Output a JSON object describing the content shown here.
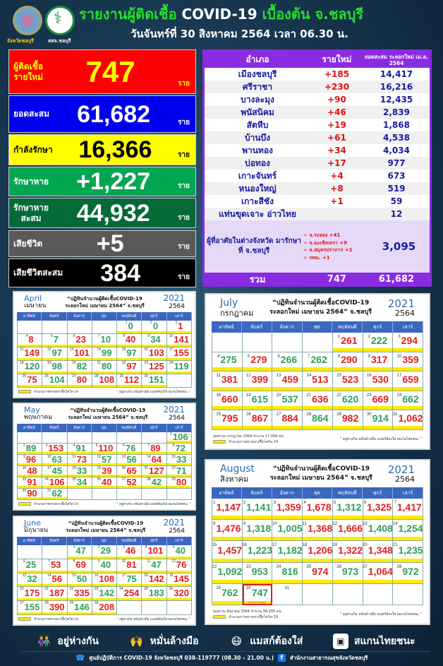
{
  "header": {
    "logo1_label": "จังหวัดชลบุรี",
    "logo2_label": "สสจ.ชลบุรี",
    "title_part1": "รายงานผู้ติดเชื้อ",
    "title_part2": "COVID-19",
    "title_part3": "เบื้องต้น จ.ชลบุรี",
    "subtitle": "วันจันทร์ที่ 30 สิงหาคม 2564 เวลา 06.30 น."
  },
  "stats": [
    {
      "label": "ผู้ติดเชื้อ\nรายใหม่",
      "value": "747",
      "unit": "ราย",
      "bg": "#ff0000",
      "fg": "#ffff00",
      "lc": "#ffff00",
      "lcolor_unit": "#ffff00"
    },
    {
      "label": "ยอดสะสม",
      "value": "61,682",
      "unit": "ราย",
      "bg": "#0000ee",
      "fg": "#ffffff",
      "lc": "#ffffff"
    },
    {
      "label": "กำลังรักษา",
      "value": "16,366",
      "unit": "ราย",
      "bg": "#ffff00",
      "fg": "#000000",
      "lc": "#000000"
    },
    {
      "label": "รักษาหาย",
      "value": "+1,227",
      "unit": "ราย",
      "bg": "#00a650",
      "fg": "#ffffff",
      "lc": "#ffffff"
    },
    {
      "label": "รักษาหาย\nสะสม",
      "value": "44,932",
      "unit": "ราย",
      "bg": "#046a38",
      "fg": "#ffffff",
      "lc": "#ffffff"
    },
    {
      "label": "เสียชีวิต",
      "value": "+5",
      "unit": "ราย",
      "bg": "#595959",
      "fg": "#ffffff",
      "lc": "#ffffff"
    },
    {
      "label": "เสียชีวิตสะสม",
      "value": "384",
      "unit": "ราย",
      "bg": "#000000",
      "fg": "#ffffff",
      "lc": "#ffffff"
    }
  ],
  "district_table": {
    "headers": [
      "อำเภอ",
      "รายใหม่",
      "ยอดสะสม ระลอกใหม่ เม.ย. 2564"
    ],
    "rows": [
      [
        "เมืองชลบุรี",
        "+185",
        "14,417"
      ],
      [
        "ศรีราชา",
        "+230",
        "16,216"
      ],
      [
        "บางละมุง",
        "+90",
        "12,435"
      ],
      [
        "พนัสนิคม",
        "+46",
        "2,839"
      ],
      [
        "สัตหีบ",
        "+19",
        "1,868"
      ],
      [
        "บ้านบึง",
        "+61",
        "4,538"
      ],
      [
        "พานทอง",
        "+34",
        "4,034"
      ],
      [
        "บ่อทอง",
        "+17",
        "977"
      ],
      [
        "เกาะจันทร์",
        "+4",
        "673"
      ],
      [
        "หนองใหญ่",
        "+8",
        "519"
      ],
      [
        "เกาะสีชัง",
        "+1",
        "59"
      ],
      [
        "แท่นขุดเจาะ อ่าวไทย",
        "",
        "12"
      ]
    ],
    "other_province": {
      "label": "ผู้ที่อาศัยในต่างจังหวัด มารักษาที่ จ.ชลบุรี",
      "items": [
        "จ.ระยอง +41",
        "จ.ฉะเชิงเทรา +9",
        "จ.สมุทรปราการ +1",
        "กทม. +1"
      ],
      "total": "3,095"
    },
    "total": [
      "รวม",
      "747",
      "61,682"
    ]
  },
  "calendar_common": {
    "title_line1": "“ปฏิทินจำนวนผู้ติดเชื้อCOVID-19",
    "title_line2": "ระลอกใหม่ เมษายน 2564” จ.ชลบุรี",
    "year_ad": "2021",
    "year_be": "2564",
    "weekdays": [
      "อาทิตย์",
      "จันทร์",
      "อังคาร",
      "พุธ",
      "พฤหัสบดี",
      "ศุกร์",
      "เสาร์"
    ],
    "legend": "จำนวนการตรวจหาเชื้อโควิด-19",
    "slogan": "“ อยู่ห่างกัน หมั่นล้างมือ แมสก์ต้องใส่ สแกนไทยชนะ ”",
    "increase_color": "#e02020",
    "decrease_color": "#2e9e5a"
  },
  "calendars": [
    {
      "en": "April",
      "th": "เมษายน",
      "start_weekday": 4,
      "values": [
        0,
        0,
        1,
        8,
        7,
        23,
        10,
        40,
        34,
        141,
        149,
        97,
        101,
        99,
        97,
        103,
        155,
        120,
        98,
        82,
        80,
        97,
        125,
        119,
        75,
        104,
        80,
        108,
        112,
        151
      ],
      "trend": "ggrrgrgrgrrgrggrrgggg rrgrgrrr",
      "footnote": ""
    },
    {
      "en": "May",
      "th": "พฤษภาคม",
      "start_weekday": 6,
      "values": [
        106,
        89,
        153,
        91,
        110,
        76,
        89,
        72,
        96,
        63,
        73,
        57,
        56,
        64,
        33,
        48,
        45,
        33,
        39,
        65,
        127,
        71,
        91,
        106,
        34,
        40,
        52,
        42,
        80,
        90,
        62
      ],
      "trend": "ggrgrgrgrgrggrgrggrrrgrrgrrgrrg",
      "footnote": ""
    },
    {
      "en": "June",
      "th": "มิถุนายน",
      "start_weekday": 2,
      "values": [
        47,
        29,
        46,
        101,
        40,
        25,
        53,
        69,
        40,
        81,
        47,
        76,
        32,
        56,
        50,
        108,
        75,
        142,
        145,
        175,
        187,
        335,
        142,
        254,
        183,
        320,
        155,
        390,
        146,
        208
      ],
      "trend": "ggrrggrrgrgrgrgrgrrrrrgrgrgrgr",
      "footnote": ""
    },
    {
      "en": "July",
      "th": "กรกฎาคม",
      "start_weekday": 4,
      "values": [
        261,
        222,
        294,
        275,
        279,
        266,
        262,
        290,
        317,
        359,
        381,
        399,
        459,
        513,
        523,
        530,
        659,
        660,
        615,
        537,
        636,
        620,
        669,
        662,
        795,
        867,
        884,
        864,
        982,
        914,
        1062
      ],
      "trend": "rgrgrggrrrrrrrrrrrggrgrgrrrgrgr",
      "footnote": "ยอดรวม กรกฎาคม 2564 จำนวน 17,056 คน"
    },
    {
      "en": "August",
      "th": "สิงหาคม",
      "start_weekday": 0,
      "values": [
        1147,
        1141,
        1359,
        1678,
        1312,
        1325,
        1417,
        1476,
        1318,
        1005,
        1368,
        1666,
        1408,
        1254,
        1457,
        1223,
        1182,
        1206,
        1322,
        1348,
        1235,
        1092,
        953,
        816,
        974,
        973,
        1064,
        972,
        762,
        747
      ],
      "trend": "rgrrgrrrggrrggrggrrrggggrgrggg",
      "footnote": "ยอดรวม สิงหาคม 2564 จำนวน 36,200 คน",
      "days_in_month": 31,
      "today": 30,
      "today_note": "รอรายงานข้อมูล"
    }
  ],
  "footer": {
    "slogans": [
      "อยู่ห่างกัน",
      "หมั่นล้างมือ",
      "แมสก์ต้องใส่",
      "สแกนไทยชนะ"
    ],
    "hotline": "ศูนย์ปฏิบัติการ COVID-19 จังหวัดชลบุรี 038-119777 (08.30 – 21.00 น.)",
    "facebook": "สำนักงานสาธารณสุขจังหวัดชลบุรี"
  }
}
